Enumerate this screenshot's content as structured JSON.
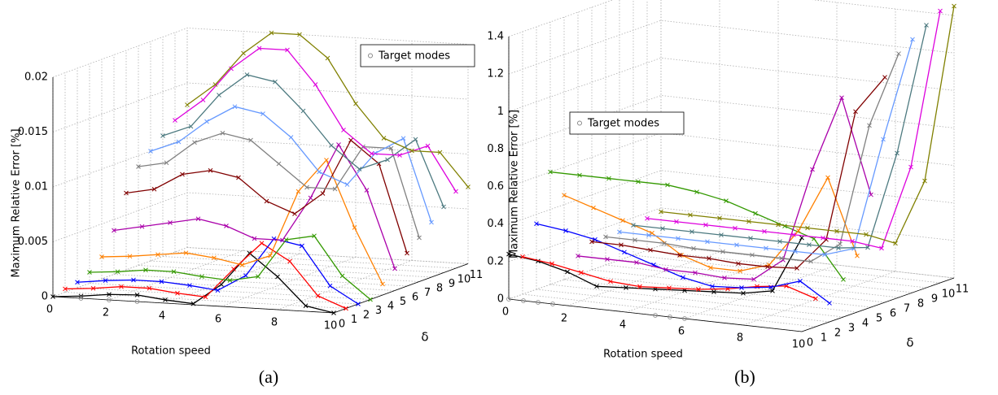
{
  "chart_data": [
    {
      "type": "line3d",
      "caption": "(a)",
      "xlabel": "Rotation speed",
      "ylabel": "Maximum Relative Error [%]",
      "dlabel": "δ",
      "x": [
        0,
        1,
        2,
        3,
        4,
        5,
        6,
        7,
        8,
        9,
        10
      ],
      "xlim": [
        0,
        10
      ],
      "xticks": [
        0,
        2,
        4,
        6,
        8,
        10
      ],
      "dlim": [
        0,
        11
      ],
      "dticks": [
        0,
        1,
        2,
        3,
        4,
        5,
        6,
        7,
        8,
        9,
        10,
        11
      ],
      "ylim": [
        0,
        0.02
      ],
      "yticks": [
        0,
        0.005,
        0.01,
        0.015,
        0.02
      ],
      "grid": true,
      "target": {
        "name": "Target modes",
        "color": "#888888",
        "x": [
          1,
          2,
          3
        ],
        "values": [
          0,
          0,
          0
        ]
      },
      "series": [
        {
          "color": "#000000",
          "values": [
            0,
            0.0002,
            0.0005,
            0.0006,
            0.0003,
            0.0001,
            0.002,
            0.005,
            0.003,
            0.0005,
            0
          ]
        },
        {
          "color": "#ff0000",
          "values": [
            0.0003,
            0.0005,
            0.0008,
            0.0008,
            0.0005,
            0.0003,
            0.003,
            0.0055,
            0.004,
            0.001,
            0
          ]
        },
        {
          "color": "#0000ff",
          "values": [
            0.0005,
            0.0008,
            0.001,
            0.001,
            0.0008,
            0.0005,
            0.002,
            0.0055,
            0.005,
            0.0015,
            0
          ]
        },
        {
          "color": "#339900",
          "values": [
            0.001,
            0.0012,
            0.0015,
            0.0015,
            0.0012,
            0.001,
            0.0015,
            0.005,
            0.0055,
            0.002,
            0
          ]
        },
        {
          "color": "#ff8000",
          "values": [
            0.002,
            0.0022,
            0.0025,
            0.0028,
            0.0025,
            0.002,
            0.003,
            0.009,
            0.012,
            0.006,
            0.001
          ]
        },
        {
          "color": "#aa00aa",
          "values": [
            0.004,
            0.0045,
            0.005,
            0.0055,
            0.005,
            0.004,
            0.004,
            0.008,
            0.013,
            0.009,
            0.002
          ]
        },
        {
          "color": "#800000",
          "values": [
            0.007,
            0.0075,
            0.009,
            0.0095,
            0.009,
            0.007,
            0.006,
            0.008,
            0.013,
            0.011,
            0.003
          ]
        },
        {
          "color": "#808080",
          "values": [
            0.009,
            0.0095,
            0.0115,
            0.0125,
            0.012,
            0.01,
            0.008,
            0.008,
            0.012,
            0.012,
            0.004
          ]
        },
        {
          "color": "#6699ff",
          "values": [
            0.01,
            0.011,
            0.013,
            0.0145,
            0.014,
            0.012,
            0.009,
            0.008,
            0.011,
            0.0125,
            0.005
          ]
        },
        {
          "color": "#4d7a80",
          "values": [
            0.011,
            0.012,
            0.015,
            0.017,
            0.0165,
            0.014,
            0.011,
            0.009,
            0.01,
            0.012,
            0.006
          ]
        },
        {
          "color": "#dd00dd",
          "values": [
            0.012,
            0.014,
            0.017,
            0.019,
            0.019,
            0.016,
            0.012,
            0.01,
            0.01,
            0.011,
            0.007
          ]
        },
        {
          "color": "#808000",
          "values": [
            0.013,
            0.015,
            0.018,
            0.02,
            0.02,
            0.018,
            0.014,
            0.011,
            0.01,
            0.01,
            0.007
          ]
        }
      ]
    },
    {
      "type": "line3d",
      "caption": "(b)",
      "xlabel": "Rotation speed",
      "ylabel": "Maximum Relative Error [%]",
      "dlabel": "δ",
      "x": [
        0,
        1,
        2,
        3,
        4,
        5,
        6,
        7,
        8,
        9,
        10
      ],
      "xlim": [
        0,
        10
      ],
      "xticks": [
        0,
        2,
        4,
        6,
        8,
        10
      ],
      "dlim": [
        0,
        11
      ],
      "dticks": [
        0,
        1,
        2,
        3,
        4,
        5,
        6,
        7,
        8,
        9,
        10,
        11
      ],
      "ylim": [
        0,
        1.4
      ],
      "yticks": [
        0,
        0.2,
        0.4,
        0.6,
        0.8,
        1,
        1.2,
        1.4
      ],
      "grid": true,
      "target": {
        "name": "Target modes",
        "color": "#888888",
        "x": [
          0,
          0.5,
          1,
          1.5,
          5,
          5.5,
          6
        ],
        "values": [
          0,
          0,
          0,
          0,
          0,
          0,
          0
        ]
      },
      "series": [
        {
          "color": "#000000",
          "values": [
            0.24,
            0.22,
            0.18,
            0.12,
            0.13,
            0.14,
            0.15,
            0.16,
            0.17,
            0.2,
            0.5
          ]
        },
        {
          "color": "#ff0000",
          "values": [
            0.2,
            0.18,
            0.15,
            0.12,
            0.11,
            0.12,
            0.13,
            0.15,
            0.18,
            0.2,
            0.15
          ]
        },
        {
          "color": "#0000ff",
          "values": [
            0.35,
            0.33,
            0.3,
            0.25,
            0.2,
            0.15,
            0.12,
            0.13,
            0.15,
            0.2,
            0.1
          ]
        },
        {
          "color": "#339900",
          "values": [
            0.6,
            0.6,
            0.6,
            0.6,
            0.6,
            0.58,
            0.55,
            0.5,
            0.45,
            0.4,
            0.2
          ]
        },
        {
          "color": "#ff8000",
          "values": [
            0.45,
            0.4,
            0.35,
            0.3,
            0.2,
            0.15,
            0.15,
            0.2,
            0.4,
            0.7,
            0.3
          ]
        },
        {
          "color": "#aa00aa",
          "values": [
            0.1,
            0.1,
            0.1,
            0.08,
            0.08,
            0.07,
            0.08,
            0.2,
            0.7,
            1.1,
            0.6
          ]
        },
        {
          "color": "#800000",
          "values": [
            0.15,
            0.15,
            0.14,
            0.13,
            0.13,
            0.12,
            0.12,
            0.13,
            0.3,
            1.0,
            1.2
          ]
        },
        {
          "color": "#808080",
          "values": [
            0.15,
            0.15,
            0.15,
            0.14,
            0.14,
            0.14,
            0.14,
            0.14,
            0.25,
            0.9,
            1.3
          ]
        },
        {
          "color": "#6699ff",
          "values": [
            0.15,
            0.15,
            0.15,
            0.15,
            0.15,
            0.15,
            0.15,
            0.15,
            0.2,
            0.8,
            1.35
          ]
        },
        {
          "color": "#4d7a80",
          "values": [
            0.16,
            0.16,
            0.16,
            0.16,
            0.16,
            0.16,
            0.16,
            0.16,
            0.18,
            0.7,
            1.4
          ]
        },
        {
          "color": "#dd00dd",
          "values": [
            0.17,
            0.17,
            0.17,
            0.17,
            0.17,
            0.17,
            0.17,
            0.17,
            0.15,
            0.6,
            1.45
          ]
        },
        {
          "color": "#808000",
          "values": [
            0.18,
            0.18,
            0.18,
            0.18,
            0.18,
            0.18,
            0.18,
            0.18,
            0.15,
            0.5,
            1.45
          ]
        }
      ]
    }
  ]
}
